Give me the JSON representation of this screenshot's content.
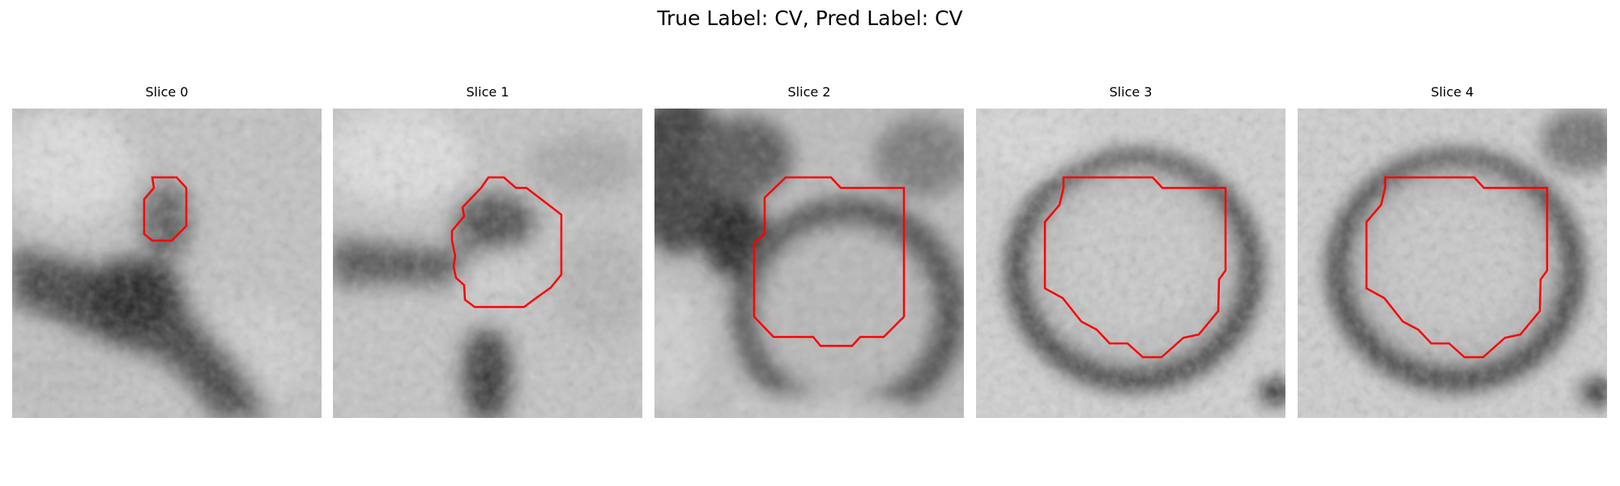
{
  "figure": {
    "title": "True Label: CV, Pred Label: CV",
    "contour_color": "#ff0000",
    "colormap": "grayscale",
    "slices": [
      {
        "title": "Slice 0"
      },
      {
        "title": "Slice 1"
      },
      {
        "title": "Slice 2"
      },
      {
        "title": "Slice 3"
      },
      {
        "title": "Slice 4"
      }
    ]
  }
}
